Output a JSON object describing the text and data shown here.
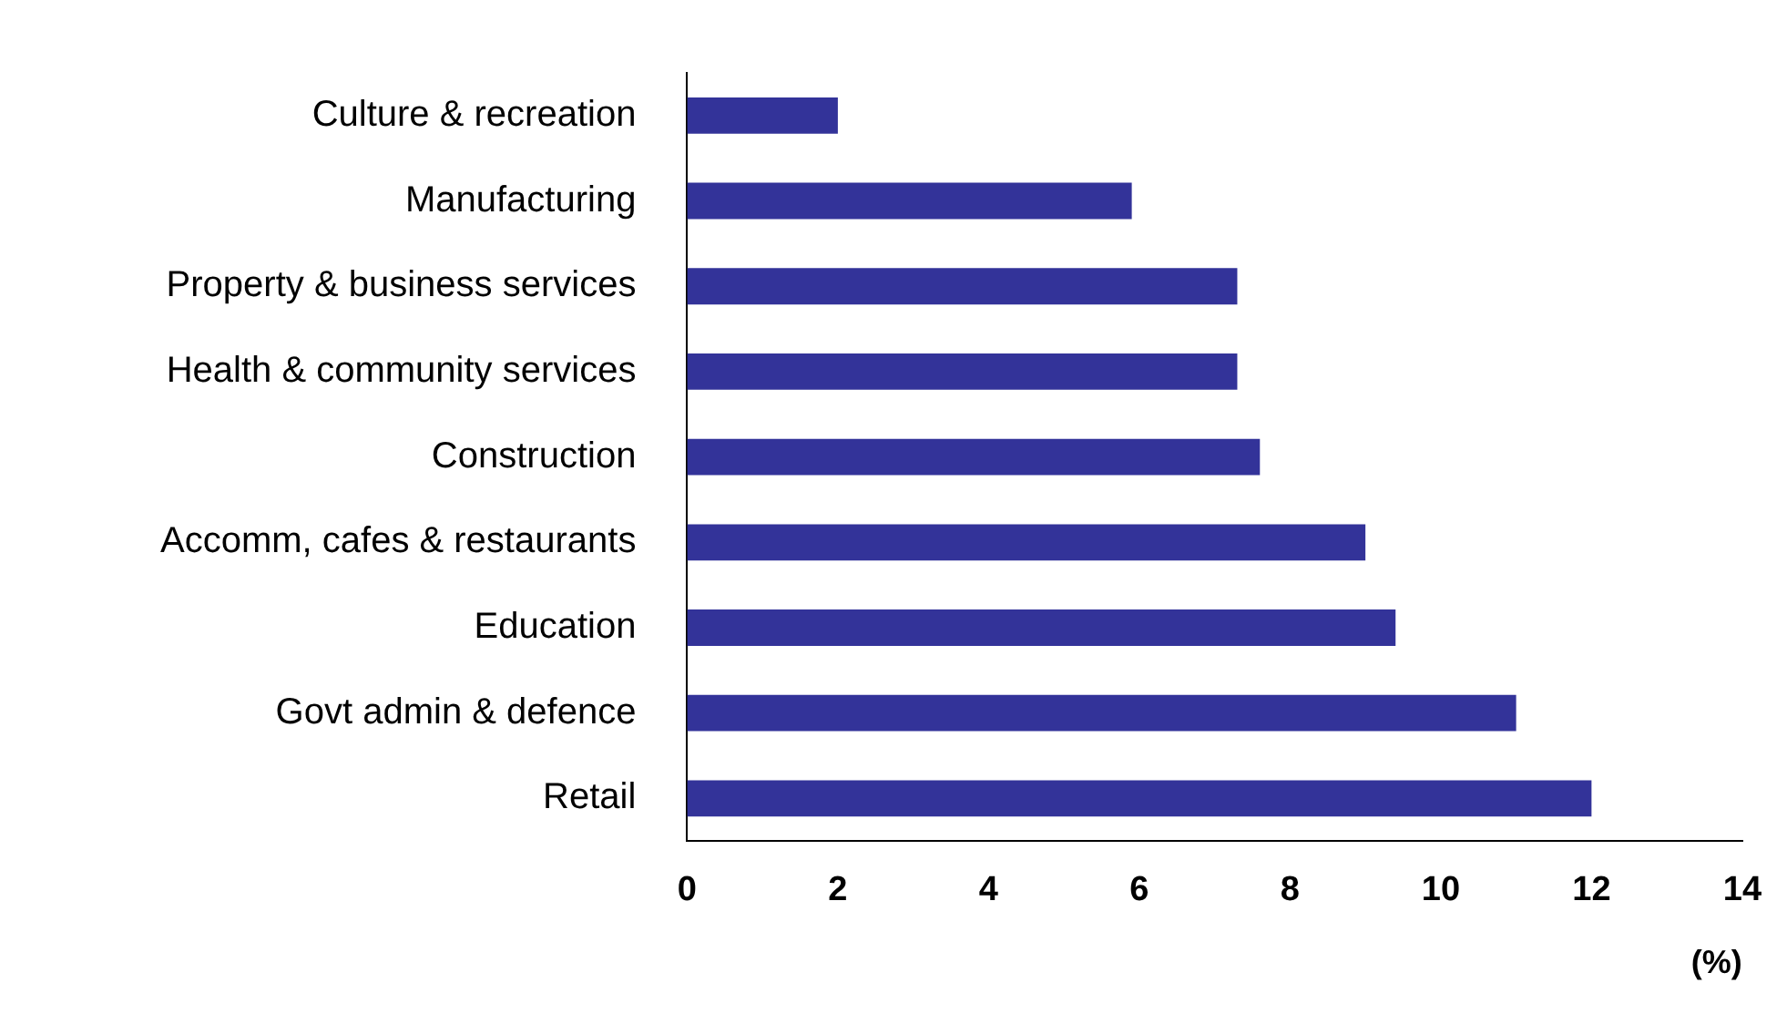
{
  "chart_data": {
    "type": "bar",
    "orientation": "horizontal",
    "xlabel": "(%)",
    "categories": [
      "Culture & recreation",
      "Manufacturing",
      "Property & business services",
      "Health & community services",
      "Construction",
      "Accomm, cafes & restaurants",
      "Education",
      "Govt admin & defence",
      "Retail"
    ],
    "values": [
      2.0,
      5.9,
      7.3,
      7.3,
      7.6,
      9.0,
      9.4,
      11.0,
      12.0
    ],
    "color": "#333399",
    "xlim": [
      0,
      14
    ],
    "xticks": [
      0,
      2,
      4,
      6,
      8,
      10,
      12,
      14
    ],
    "grid": false,
    "legend": false
  }
}
